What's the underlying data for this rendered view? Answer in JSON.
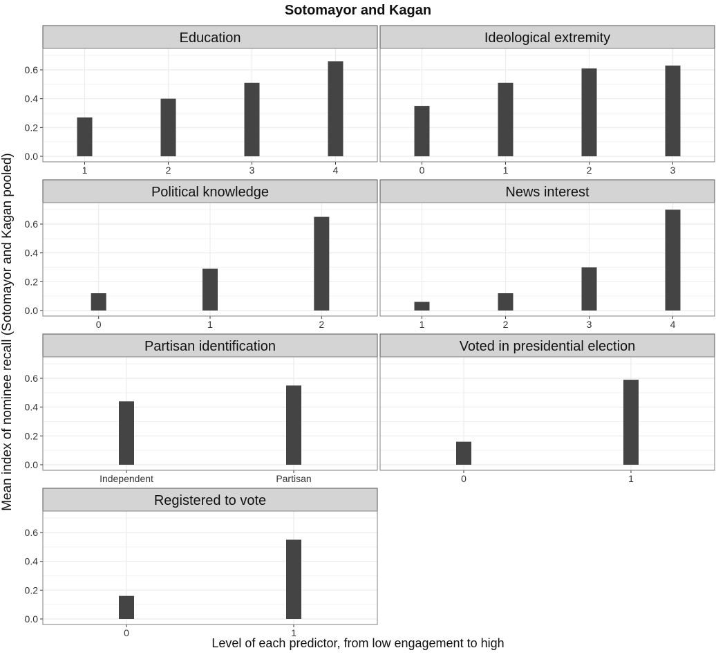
{
  "chart_data": {
    "type": "bar",
    "title": "Sotomayor and Kagan",
    "xlabel": "Level of each predictor, from low engagement to high",
    "ylabel": "Mean index of nominee recall (Sotomayor and Kagan pooled)",
    "ylim": [
      0,
      0.72
    ],
    "yticks": [
      "0.0",
      "0.2",
      "0.4",
      "0.6"
    ],
    "grid": true,
    "colors": {
      "bar": "#444444",
      "strip": "#d4d4d4",
      "grid": "#ebebeb",
      "border": "#7f7f7f"
    },
    "panels": [
      {
        "name": "Education",
        "categories": [
          "1",
          "2",
          "3",
          "4"
        ],
        "values": [
          0.27,
          0.4,
          0.51,
          0.66
        ]
      },
      {
        "name": "Ideological extremity",
        "categories": [
          "0",
          "1",
          "2",
          "3"
        ],
        "values": [
          0.35,
          0.51,
          0.61,
          0.63
        ]
      },
      {
        "name": "Political knowledge",
        "categories": [
          "0",
          "1",
          "2"
        ],
        "values": [
          0.12,
          0.29,
          0.65
        ]
      },
      {
        "name": "News interest",
        "categories": [
          "1",
          "2",
          "3",
          "4"
        ],
        "values": [
          0.06,
          0.12,
          0.3,
          0.7
        ]
      },
      {
        "name": "Partisan identification",
        "categories": [
          "Independent",
          "Partisan"
        ],
        "values": [
          0.44,
          0.55
        ]
      },
      {
        "name": "Voted in presidential election",
        "categories": [
          "0",
          "1"
        ],
        "values": [
          0.16,
          0.59
        ]
      },
      {
        "name": "Registered to vote",
        "categories": [
          "0",
          "1"
        ],
        "values": [
          0.16,
          0.55
        ]
      }
    ]
  }
}
